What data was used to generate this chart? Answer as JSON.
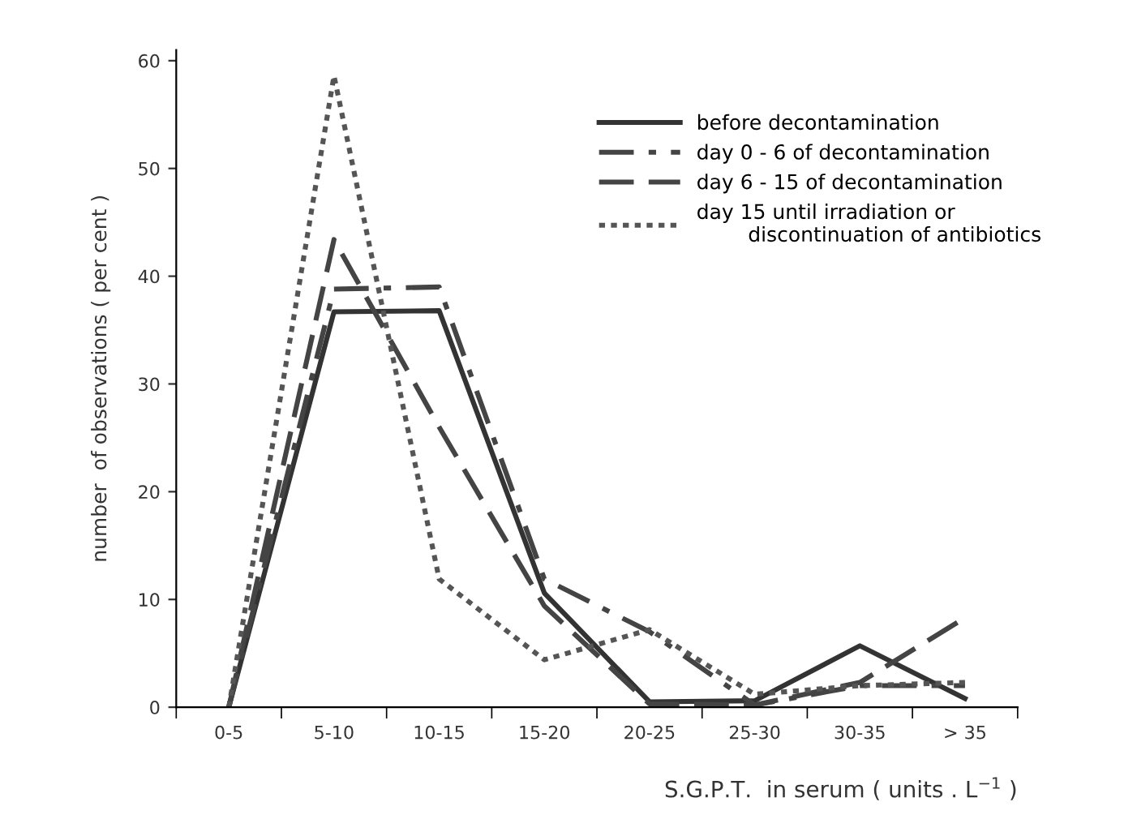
{
  "chart_data": {
    "type": "line",
    "xlabel": "S.G.P.T.  in serum ( units . L$^{−1}$ )",
    "ylabel": "number  of observations ( per cent )",
    "categories": [
      "0-5",
      "5-10",
      "10-15",
      "15-20",
      "20-25",
      "25-30",
      "30-35",
      "> 35"
    ],
    "series": [
      {
        "name": "before decontamination",
        "color": "#333333",
        "line_style": "solid",
        "values": [
          0,
          36.7,
          36.8,
          10.6,
          0.5,
          0.6,
          5.7,
          0.8
        ]
      },
      {
        "name": "day 0 - 6 of decontamination",
        "color": "#444444",
        "line_style": "dashdot",
        "values": [
          0,
          38.8,
          39,
          11.9,
          7.0,
          0.2,
          2.0,
          2.0
        ]
      },
      {
        "name": "day 6 - 15 of decontamination",
        "color": "#444444",
        "line_style": "dashed",
        "values": [
          0,
          43.4,
          26,
          9.4,
          0.3,
          0.2,
          2.3,
          8.3
        ]
      },
      {
        "name": "day 15 until irradiation or\n        discontinuation of antibiotics",
        "color": "#555555",
        "line_style": "dotted",
        "values": [
          0,
          58.6,
          11.9,
          4.4,
          7.2,
          1.2,
          2.0,
          2.3
        ]
      }
    ],
    "ylim": [
      0,
      61
    ],
    "yticks": [
      0,
      10,
      20,
      30,
      40,
      50,
      60
    ],
    "grid": false,
    "legend": "top right",
    "marker": "none"
  }
}
